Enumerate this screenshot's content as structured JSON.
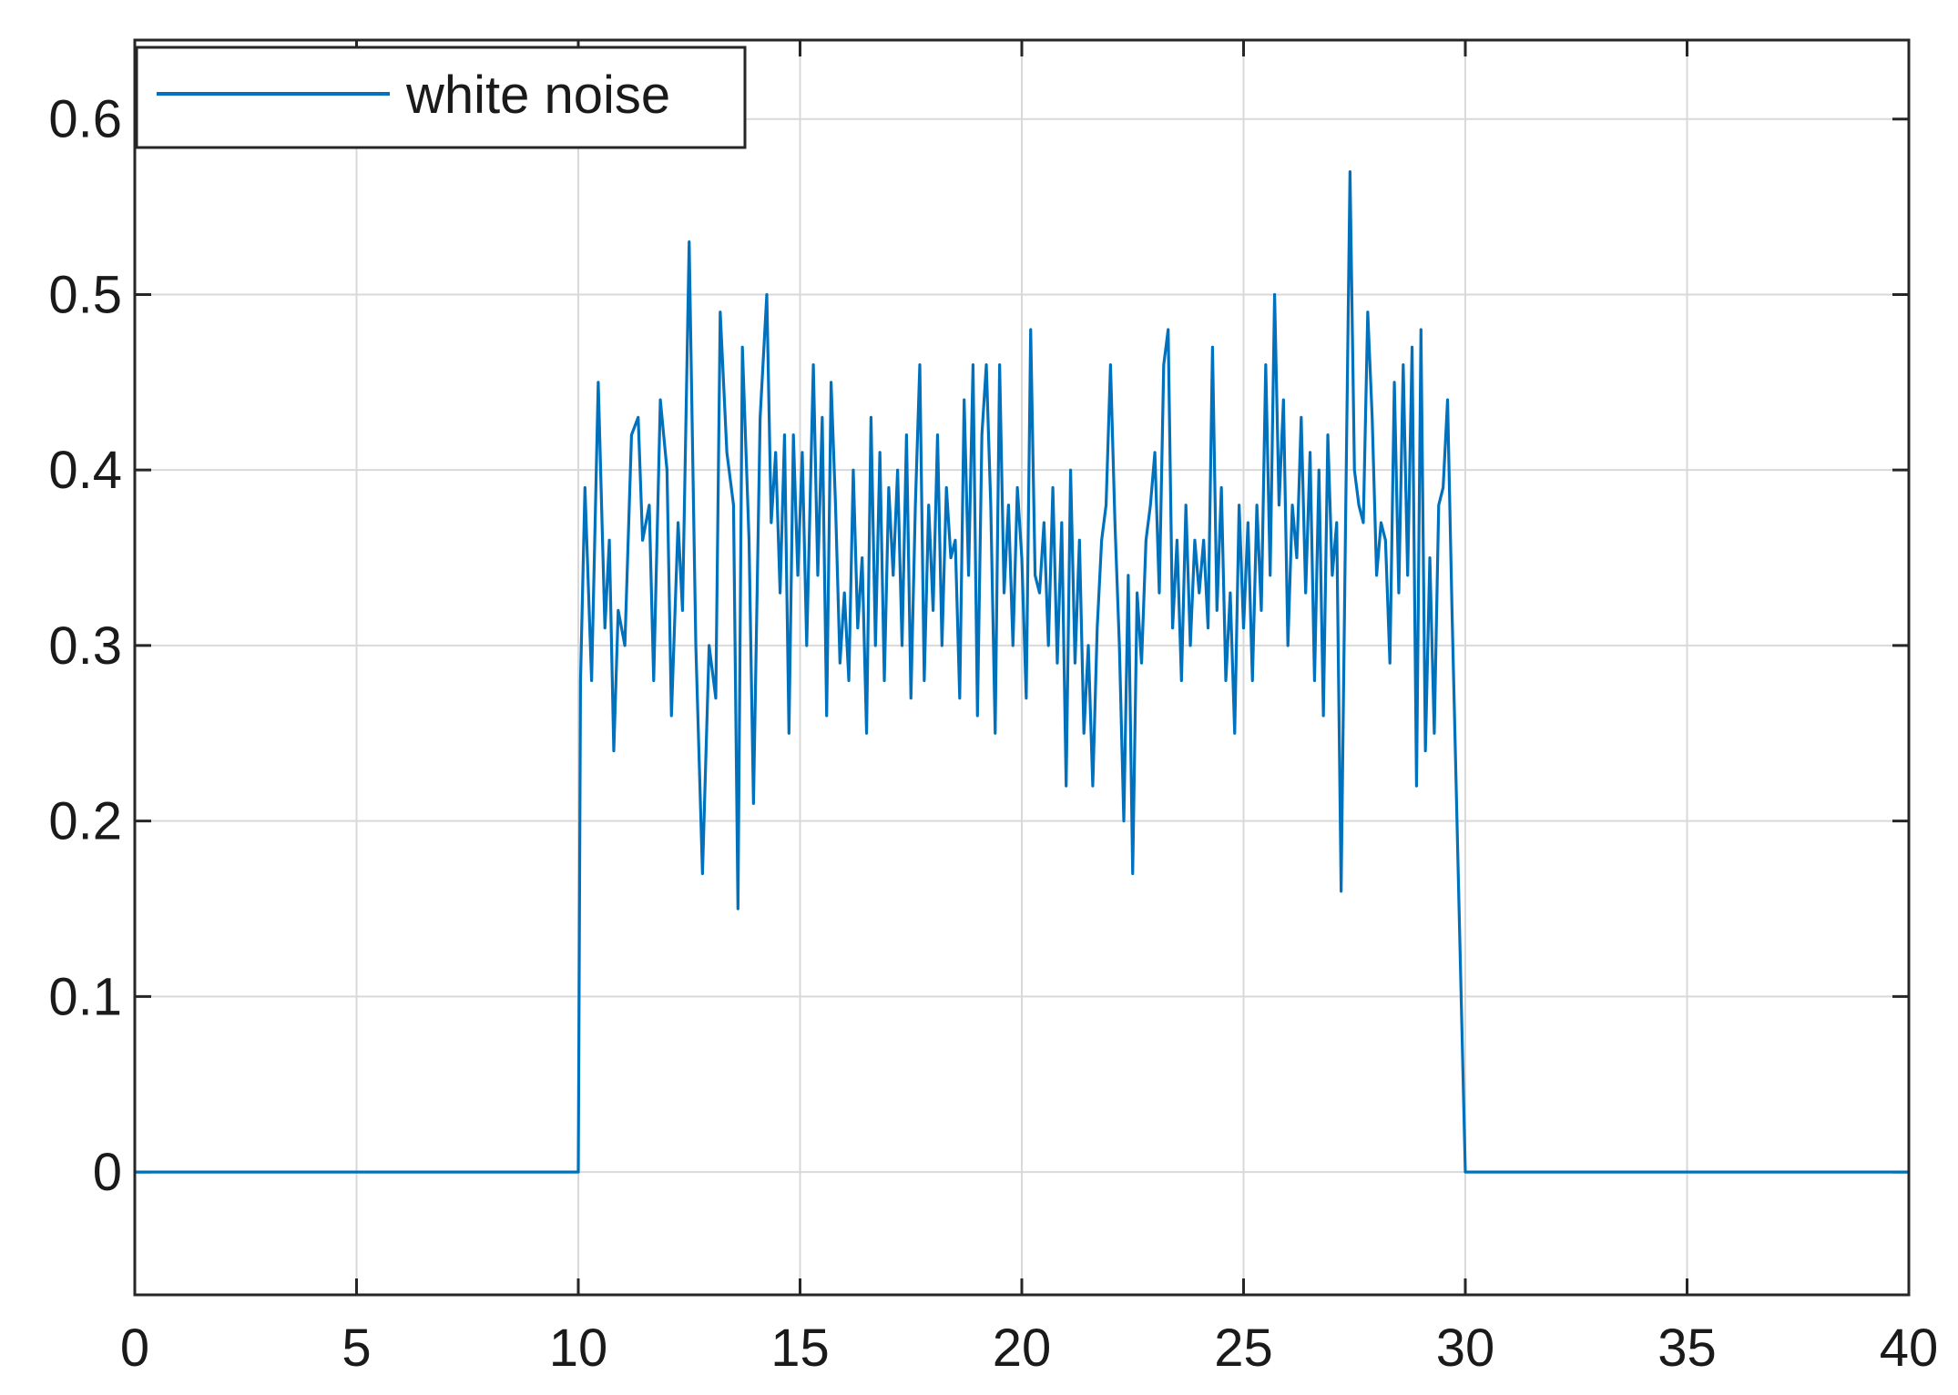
{
  "chart_data": {
    "type": "line",
    "title": "",
    "xlabel": "",
    "ylabel": "",
    "xlim": [
      0,
      40
    ],
    "ylim": [
      -0.07,
      0.645
    ],
    "x_ticks": [
      0,
      5,
      10,
      15,
      20,
      25,
      30,
      35,
      40
    ],
    "x_tick_labels": [
      "0",
      "5",
      "10",
      "15",
      "20",
      "25",
      "30",
      "35",
      "40"
    ],
    "y_ticks": [
      0,
      0.1,
      0.2,
      0.3,
      0.4,
      0.5,
      0.6
    ],
    "y_tick_labels": [
      "0",
      "0.1",
      "0.2",
      "0.3",
      "0.4",
      "0.5",
      "0.6"
    ],
    "grid": true,
    "legend": {
      "location": "top-left",
      "entries": [
        "white noise"
      ]
    },
    "series": [
      {
        "name": "white noise",
        "color": "#0072BD",
        "points": [
          [
            0,
            0
          ],
          [
            10,
            0
          ],
          [
            10.05,
            0.28
          ],
          [
            10.15,
            0.39
          ],
          [
            10.3,
            0.28
          ],
          [
            10.45,
            0.45
          ],
          [
            10.6,
            0.31
          ],
          [
            10.7,
            0.36
          ],
          [
            10.8,
            0.24
          ],
          [
            10.9,
            0.32
          ],
          [
            11.05,
            0.3
          ],
          [
            11.2,
            0.42
          ],
          [
            11.35,
            0.43
          ],
          [
            11.45,
            0.36
          ],
          [
            11.6,
            0.38
          ],
          [
            11.7,
            0.28
          ],
          [
            11.85,
            0.44
          ],
          [
            12.0,
            0.4
          ],
          [
            12.1,
            0.26
          ],
          [
            12.25,
            0.37
          ],
          [
            12.35,
            0.32
          ],
          [
            12.5,
            0.53
          ],
          [
            12.65,
            0.3
          ],
          [
            12.8,
            0.17
          ],
          [
            12.95,
            0.3
          ],
          [
            13.1,
            0.27
          ],
          [
            13.2,
            0.49
          ],
          [
            13.35,
            0.41
          ],
          [
            13.5,
            0.38
          ],
          [
            13.6,
            0.15
          ],
          [
            13.7,
            0.47
          ],
          [
            13.85,
            0.36
          ],
          [
            13.95,
            0.21
          ],
          [
            14.1,
            0.43
          ],
          [
            14.25,
            0.5
          ],
          [
            14.35,
            0.37
          ],
          [
            14.45,
            0.41
          ],
          [
            14.55,
            0.33
          ],
          [
            14.65,
            0.42
          ],
          [
            14.75,
            0.25
          ],
          [
            14.85,
            0.42
          ],
          [
            14.95,
            0.34
          ],
          [
            15.05,
            0.41
          ],
          [
            15.15,
            0.3
          ],
          [
            15.3,
            0.46
          ],
          [
            15.4,
            0.34
          ],
          [
            15.5,
            0.43
          ],
          [
            15.6,
            0.26
          ],
          [
            15.7,
            0.45
          ],
          [
            15.8,
            0.38
          ],
          [
            15.9,
            0.29
          ],
          [
            16.0,
            0.33
          ],
          [
            16.1,
            0.28
          ],
          [
            16.2,
            0.4
          ],
          [
            16.3,
            0.31
          ],
          [
            16.4,
            0.35
          ],
          [
            16.5,
            0.25
          ],
          [
            16.6,
            0.43
          ],
          [
            16.7,
            0.3
          ],
          [
            16.8,
            0.41
          ],
          [
            16.9,
            0.28
          ],
          [
            17.0,
            0.39
          ],
          [
            17.1,
            0.34
          ],
          [
            17.2,
            0.4
          ],
          [
            17.3,
            0.3
          ],
          [
            17.4,
            0.42
          ],
          [
            17.5,
            0.27
          ],
          [
            17.6,
            0.38
          ],
          [
            17.7,
            0.46
          ],
          [
            17.8,
            0.28
          ],
          [
            17.9,
            0.38
          ],
          [
            18.0,
            0.32
          ],
          [
            18.1,
            0.42
          ],
          [
            18.2,
            0.3
          ],
          [
            18.3,
            0.39
          ],
          [
            18.4,
            0.35
          ],
          [
            18.5,
            0.36
          ],
          [
            18.6,
            0.27
          ],
          [
            18.7,
            0.44
          ],
          [
            18.8,
            0.34
          ],
          [
            18.9,
            0.46
          ],
          [
            19.0,
            0.26
          ],
          [
            19.1,
            0.42
          ],
          [
            19.2,
            0.46
          ],
          [
            19.3,
            0.38
          ],
          [
            19.4,
            0.25
          ],
          [
            19.5,
            0.46
          ],
          [
            19.6,
            0.33
          ],
          [
            19.7,
            0.38
          ],
          [
            19.8,
            0.3
          ],
          [
            19.9,
            0.39
          ],
          [
            20.0,
            0.35
          ],
          [
            20.1,
            0.27
          ],
          [
            20.2,
            0.48
          ],
          [
            20.3,
            0.34
          ],
          [
            20.4,
            0.33
          ],
          [
            20.5,
            0.37
          ],
          [
            20.6,
            0.3
          ],
          [
            20.7,
            0.39
          ],
          [
            20.8,
            0.29
          ],
          [
            20.9,
            0.37
          ],
          [
            21.0,
            0.22
          ],
          [
            21.1,
            0.4
          ],
          [
            21.2,
            0.29
          ],
          [
            21.3,
            0.36
          ],
          [
            21.4,
            0.25
          ],
          [
            21.5,
            0.3
          ],
          [
            21.6,
            0.22
          ],
          [
            21.7,
            0.31
          ],
          [
            21.8,
            0.36
          ],
          [
            21.9,
            0.38
          ],
          [
            22.0,
            0.46
          ],
          [
            22.1,
            0.37
          ],
          [
            22.2,
            0.3
          ],
          [
            22.3,
            0.2
          ],
          [
            22.4,
            0.34
          ],
          [
            22.5,
            0.17
          ],
          [
            22.6,
            0.33
          ],
          [
            22.7,
            0.29
          ],
          [
            22.8,
            0.36
          ],
          [
            22.9,
            0.38
          ],
          [
            23.0,
            0.41
          ],
          [
            23.1,
            0.33
          ],
          [
            23.2,
            0.46
          ],
          [
            23.3,
            0.48
          ],
          [
            23.4,
            0.31
          ],
          [
            23.5,
            0.36
          ],
          [
            23.6,
            0.28
          ],
          [
            23.7,
            0.38
          ],
          [
            23.8,
            0.3
          ],
          [
            23.9,
            0.36
          ],
          [
            24.0,
            0.33
          ],
          [
            24.1,
            0.36
          ],
          [
            24.2,
            0.31
          ],
          [
            24.3,
            0.47
          ],
          [
            24.4,
            0.32
          ],
          [
            24.5,
            0.39
          ],
          [
            24.6,
            0.28
          ],
          [
            24.7,
            0.33
          ],
          [
            24.8,
            0.25
          ],
          [
            24.9,
            0.38
          ],
          [
            25.0,
            0.31
          ],
          [
            25.1,
            0.37
          ],
          [
            25.2,
            0.28
          ],
          [
            25.3,
            0.38
          ],
          [
            25.4,
            0.32
          ],
          [
            25.5,
            0.46
          ],
          [
            25.6,
            0.34
          ],
          [
            25.7,
            0.5
          ],
          [
            25.8,
            0.38
          ],
          [
            25.9,
            0.44
          ],
          [
            26.0,
            0.3
          ],
          [
            26.1,
            0.38
          ],
          [
            26.2,
            0.35
          ],
          [
            26.3,
            0.43
          ],
          [
            26.4,
            0.33
          ],
          [
            26.5,
            0.41
          ],
          [
            26.6,
            0.28
          ],
          [
            26.7,
            0.4
          ],
          [
            26.8,
            0.26
          ],
          [
            26.9,
            0.42
          ],
          [
            27.0,
            0.34
          ],
          [
            27.1,
            0.37
          ],
          [
            27.2,
            0.16
          ],
          [
            27.3,
            0.37
          ],
          [
            27.4,
            0.57
          ],
          [
            27.5,
            0.4
          ],
          [
            27.6,
            0.38
          ],
          [
            27.7,
            0.37
          ],
          [
            27.8,
            0.49
          ],
          [
            27.9,
            0.43
          ],
          [
            28.0,
            0.34
          ],
          [
            28.1,
            0.37
          ],
          [
            28.2,
            0.36
          ],
          [
            28.3,
            0.29
          ],
          [
            28.4,
            0.45
          ],
          [
            28.5,
            0.33
          ],
          [
            28.6,
            0.46
          ],
          [
            28.7,
            0.34
          ],
          [
            28.8,
            0.47
          ],
          [
            28.9,
            0.22
          ],
          [
            29.0,
            0.48
          ],
          [
            29.1,
            0.24
          ],
          [
            29.2,
            0.35
          ],
          [
            29.3,
            0.25
          ],
          [
            29.4,
            0.38
          ],
          [
            29.5,
            0.39
          ],
          [
            29.6,
            0.44
          ],
          [
            29.7,
            0.32
          ],
          [
            30.0,
            0
          ],
          [
            40,
            0
          ]
        ]
      }
    ]
  }
}
